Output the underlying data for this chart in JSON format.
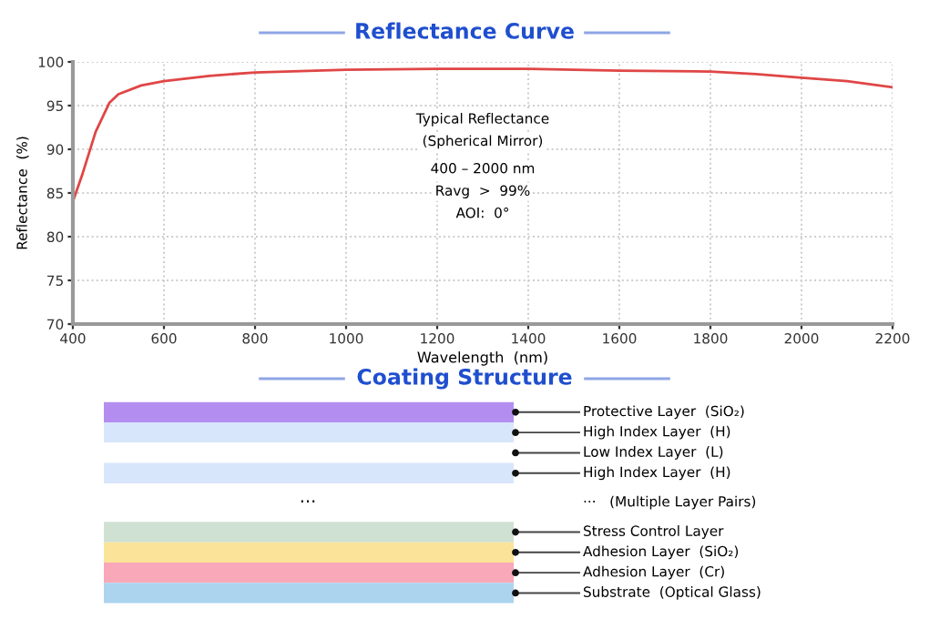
{
  "chart_data": [
    {
      "type": "line",
      "title": "Reflectance Curve",
      "xlabel": "Wavelength  (nm)",
      "ylabel": "Reflectance  (%)",
      "x": [
        400,
        420,
        450,
        480,
        500,
        550,
        600,
        700,
        800,
        1000,
        1200,
        1400,
        1600,
        1800,
        1900,
        2000,
        2100,
        2200
      ],
      "series": [
        {
          "color": "#e04646",
          "values": [
            84,
            87,
            92,
            95.3,
            96.3,
            97.3,
            97.8,
            98.4,
            98.8,
            99.1,
            99.2,
            99.2,
            99.0,
            98.9,
            98.6,
            98.2,
            97.8,
            97.1
          ]
        }
      ],
      "xlim": [
        400,
        2200
      ],
      "xticks": [
        400,
        600,
        800,
        1000,
        1200,
        1400,
        1600,
        1800,
        2000,
        2200
      ],
      "ylim": [
        70,
        100
      ],
      "yticks": [
        70,
        75,
        80,
        85,
        90,
        95,
        100
      ],
      "grid": true,
      "legend": false,
      "marker": "none",
      "line_style": "solid",
      "annotations": [
        "Typical Reflectance",
        "(Spherical Mirror)",
        "400 – 2000 nm",
        "Ravg  >  99%",
        "AOI:  0°"
      ]
    },
    {
      "type": "other",
      "title": "Coating Structure",
      "categories": [
        "Protective Layer  (SiO₂)",
        "High Index Layer  (H)",
        "Low Index Layer  (L)",
        "High Index Layer  (H)",
        "···   (Multiple Layer Pairs)",
        "Stress Control Layer",
        "Adhesion Layer  (SiO₂)",
        "Adhesion Layer  (Cr)",
        "Substrate  (Optical Glass)"
      ],
      "colors": [
        "#b38ef0",
        "#d8e6fb",
        "#ffffff",
        "#d8e6fb",
        "#ffffff",
        "#cfe1d3",
        "#fbe39a",
        "#f8a8b8",
        "#acd4ef"
      ],
      "annotations": [
        "···"
      ]
    }
  ]
}
